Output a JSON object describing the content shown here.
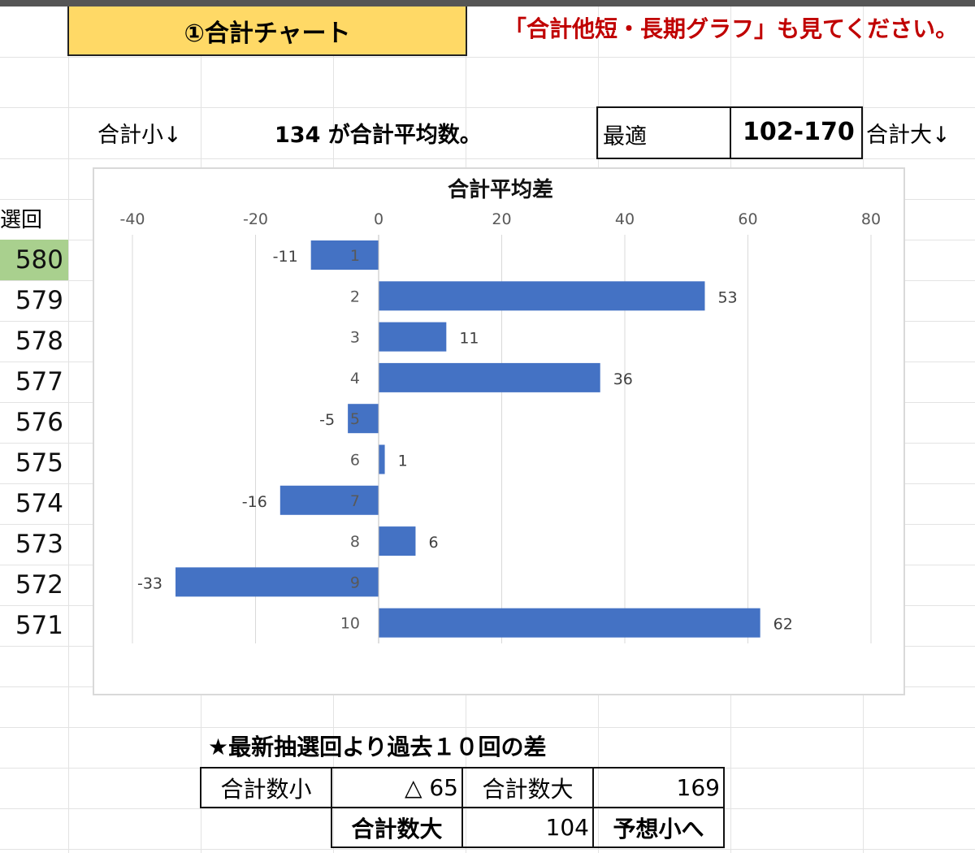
{
  "header": {
    "title": "①合計チャート",
    "notice": "「合計他短・長期グラフ」も見てください。"
  },
  "info_row": {
    "small_label": "合計小↓",
    "average_text": "134 が合計平均数。",
    "optimal_label": "最適",
    "optimal_range": "102-170",
    "large_label": "合計大↓"
  },
  "draw_column": {
    "header": "選回",
    "rows": [
      "580",
      "579",
      "578",
      "577",
      "576",
      "575",
      "574",
      "573",
      "572",
      "571"
    ],
    "highlight_color": "#a9d08e"
  },
  "chart_data": {
    "type": "bar",
    "orientation": "horizontal",
    "title": "合計平均差",
    "categories": [
      "1",
      "2",
      "3",
      "4",
      "5",
      "6",
      "7",
      "8",
      "9",
      "10"
    ],
    "values": [
      -11,
      53,
      11,
      36,
      -5,
      1,
      -16,
      6,
      -33,
      62
    ],
    "xlim": [
      -40,
      80
    ],
    "xticks": [
      "-40",
      "-20",
      "0",
      "20",
      "40",
      "60",
      "80"
    ],
    "x_axis_position": "top",
    "grid": true,
    "bar_color": "#4472c4"
  },
  "summary": {
    "heading": "★最新抽選回より過去１０回の差",
    "row1": [
      "合計数小",
      "△ 65",
      "合計数大",
      "169"
    ],
    "row2": [
      "合計数大",
      "104",
      "予想小へ"
    ]
  }
}
